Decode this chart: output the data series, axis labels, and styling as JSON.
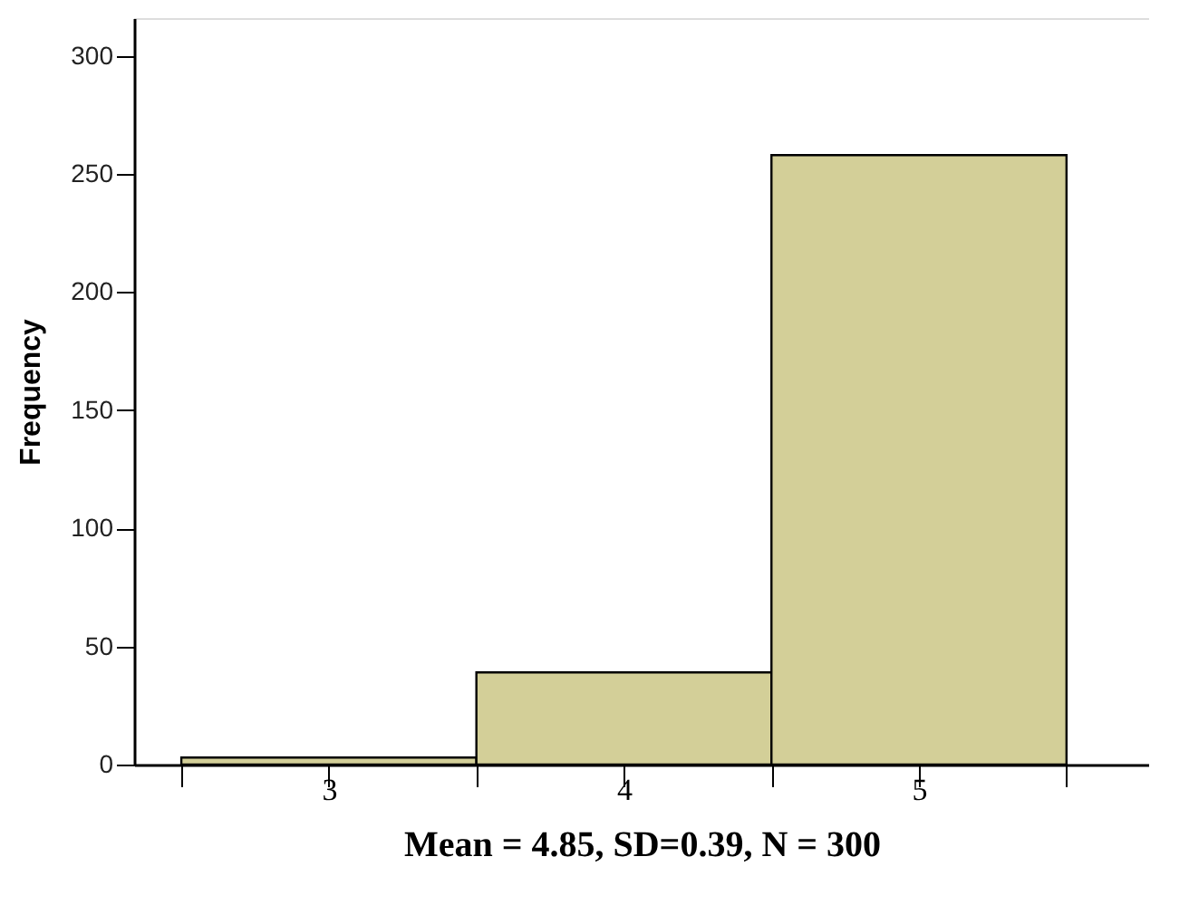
{
  "chart_data": {
    "type": "histogram",
    "ylabel": "Frequency",
    "xlabel": "Mean = 4.85, SD=0.39, N = 300",
    "bins": [
      2.5,
      3.5,
      4.5,
      5.5
    ],
    "values": [
      3,
      39,
      258
    ],
    "color": "#d3cf98",
    "xlim": [
      2.34,
      5.78
    ],
    "xticks": [
      {
        "value": 2.5,
        "label": null
      },
      3,
      {
        "value": 3.5,
        "label": null
      },
      4,
      {
        "value": 4.5,
        "label": null
      },
      5,
      {
        "value": 5.5,
        "label": null
      }
    ],
    "ylim": [
      0,
      316
    ],
    "yticks": [
      0,
      50,
      100,
      150,
      200,
      250,
      300
    ],
    "grid": false
  }
}
